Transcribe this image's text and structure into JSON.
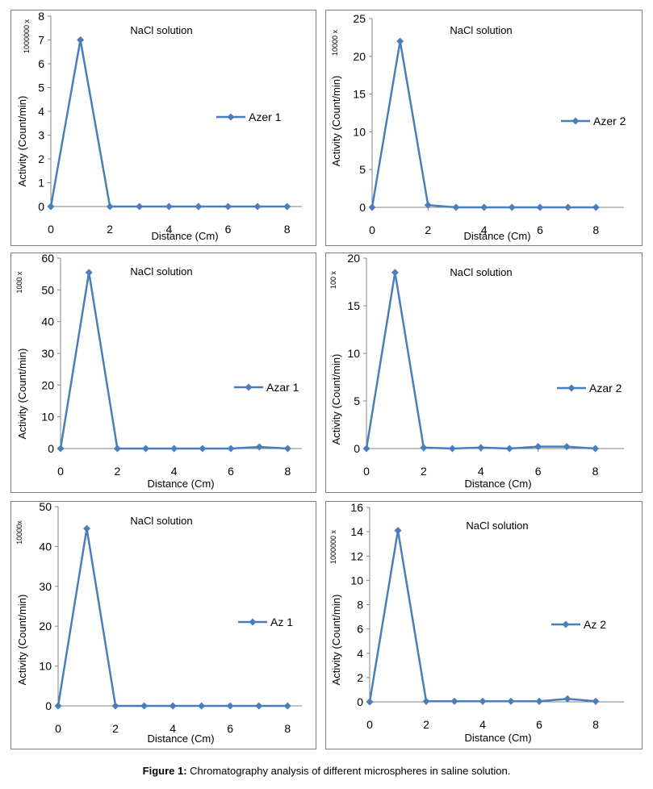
{
  "caption": {
    "label": "Figure 1:",
    "text": "Chromatography analysis of different microspheres in saline solution."
  },
  "colors": {
    "series": "#4a7ebb",
    "frame": "#7f7f7f",
    "axis": "#868686"
  },
  "chart_data": [
    {
      "type": "line",
      "title": "NaCl solution",
      "legend": "Azer 1",
      "scale_label": "1000000 x",
      "xlabel": "Distance (Cm)",
      "ylabel": "Activity (Count/min)",
      "xlim": [
        0,
        8.5
      ],
      "xticks": [
        0,
        2,
        4,
        6,
        8
      ],
      "ylim": [
        0,
        8
      ],
      "yticks": [
        0,
        1,
        2,
        3,
        4,
        5,
        6,
        7,
        8
      ],
      "x": [
        0,
        1,
        2,
        3,
        4,
        5,
        6,
        7,
        8
      ],
      "y": [
        0,
        7,
        0,
        0,
        0,
        0,
        0,
        0,
        0
      ]
    },
    {
      "type": "line",
      "title": "NaCl solution",
      "legend": "Azer 2",
      "scale_label": "10000 x",
      "xlabel": "Distance (Cm)",
      "ylabel": "Activity (Count/min)",
      "xlim": [
        0,
        9
      ],
      "xticks": [
        0,
        2,
        4,
        6,
        8
      ],
      "ylim": [
        0,
        25
      ],
      "yticks": [
        0,
        5,
        10,
        15,
        20,
        25
      ],
      "x": [
        0,
        1,
        2,
        3,
        4,
        5,
        6,
        7,
        8
      ],
      "y": [
        0,
        22,
        0.3,
        0,
        0,
        0,
        0,
        0,
        0
      ]
    },
    {
      "type": "line",
      "title": "NaCl solution",
      "legend": "Azar 1",
      "scale_label": "1000 x",
      "xlabel": "Distance (Cm)",
      "ylabel": "Activity (Count/min)",
      "xlim": [
        0,
        8.5
      ],
      "xticks": [
        0,
        2,
        4,
        6,
        8
      ],
      "ylim": [
        0,
        60
      ],
      "yticks": [
        0,
        10,
        20,
        30,
        40,
        50,
        60
      ],
      "x": [
        0,
        1,
        2,
        3,
        4,
        5,
        6,
        7,
        8
      ],
      "y": [
        0,
        55.5,
        0,
        0,
        0,
        0,
        0,
        0.5,
        0
      ]
    },
    {
      "type": "line",
      "title": "NaCl solution",
      "legend": "Azar 2",
      "scale_label": "100 x",
      "xlabel": "Distance (Cm)",
      "ylabel": "Activity (Count/min)",
      "xlim": [
        0,
        9
      ],
      "xticks": [
        0,
        2,
        4,
        6,
        8
      ],
      "ylim": [
        0,
        20
      ],
      "yticks": [
        0,
        5,
        10,
        15,
        20
      ],
      "x": [
        0,
        1,
        2,
        3,
        4,
        5,
        6,
        7,
        8
      ],
      "y": [
        0,
        18.5,
        0.1,
        0,
        0.1,
        0,
        0.2,
        0.2,
        0
      ]
    },
    {
      "type": "line",
      "title": "NaCl solution",
      "legend": "Az 1",
      "scale_label": "10000x",
      "xlabel": "Distance (Cm)",
      "ylabel": "Activity (Count/min)",
      "xlim": [
        0,
        8.5
      ],
      "xticks": [
        0,
        2,
        4,
        6,
        8
      ],
      "ylim": [
        0,
        50
      ],
      "yticks": [
        0,
        10,
        20,
        30,
        40,
        50
      ],
      "x": [
        0,
        1,
        2,
        3,
        4,
        5,
        6,
        7,
        8
      ],
      "y": [
        0,
        44.5,
        0,
        0,
        0,
        0,
        0,
        0,
        0
      ]
    },
    {
      "type": "line",
      "title": "NaCl solution",
      "legend": "Az 2",
      "scale_label": "1000000 x",
      "xlabel": "Distance (Cm)",
      "ylabel": "Activity (Count/min)",
      "xlim": [
        0,
        9
      ],
      "xticks": [
        0,
        2,
        4,
        6,
        8
      ],
      "ylim": [
        0,
        16
      ],
      "yticks": [
        0,
        2,
        4,
        6,
        8,
        10,
        12,
        14,
        16
      ],
      "x": [
        0,
        1,
        2,
        3,
        4,
        5,
        6,
        7,
        8
      ],
      "y": [
        0,
        14.1,
        0.05,
        0.05,
        0.05,
        0.05,
        0.05,
        0.25,
        0.05
      ]
    }
  ]
}
